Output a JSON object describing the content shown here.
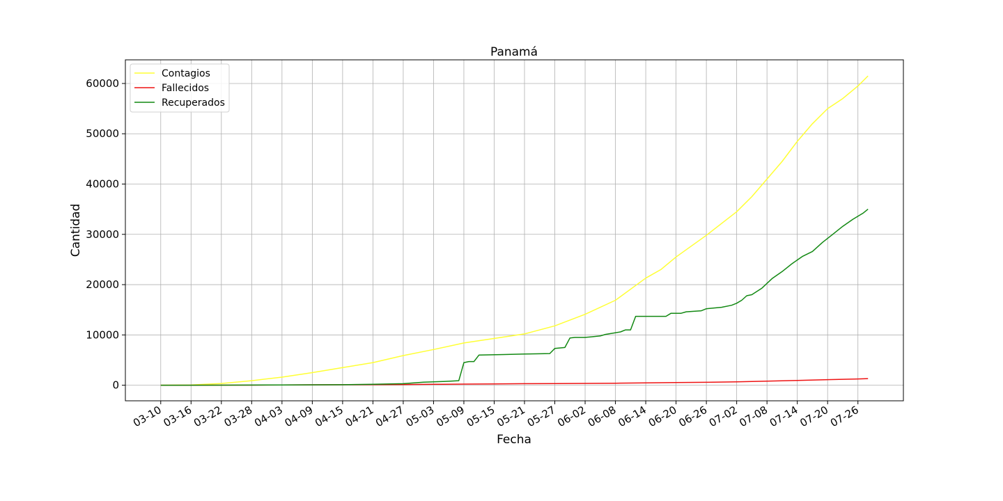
{
  "chart_data": {
    "type": "line",
    "title": "Panamá",
    "xlabel": "Fecha",
    "ylabel": "Cantidad",
    "grid": true,
    "legend_position": "top-left",
    "x_tick_labels": [
      "03-10",
      "03-16",
      "03-22",
      "03-28",
      "04-03",
      "04-09",
      "04-15",
      "04-21",
      "04-27",
      "05-03",
      "05-09",
      "05-15",
      "05-21",
      "05-27",
      "06-02",
      "06-08",
      "06-14",
      "06-20",
      "06-26",
      "07-02",
      "07-08",
      "07-14",
      "07-20",
      "07-26"
    ],
    "y_ticks": [
      0,
      10000,
      20000,
      30000,
      40000,
      50000,
      60000
    ],
    "ylim": [
      -3100,
      64700
    ],
    "xlim": [
      "03-03",
      "08-04"
    ],
    "series": [
      {
        "name": "Contagios",
        "color": "#ffff33",
        "x": [
          "03-10",
          "03-16",
          "03-22",
          "03-28",
          "04-03",
          "04-09",
          "04-15",
          "04-21",
          "04-27",
          "05-03",
          "05-09",
          "05-15",
          "05-21",
          "05-27",
          "06-02",
          "06-08",
          "06-14",
          "06-17",
          "06-20",
          "06-26",
          "07-02",
          "07-05",
          "07-08",
          "07-11",
          "07-14",
          "07-17",
          "07-20",
          "07-23",
          "07-26",
          "07-28"
        ],
        "y": [
          0,
          50,
          350,
          900,
          1600,
          2500,
          3500,
          4500,
          5900,
          7100,
          8400,
          9300,
          10200,
          11800,
          14100,
          16900,
          21300,
          23000,
          25500,
          29800,
          34500,
          37500,
          41000,
          44500,
          48500,
          52000,
          55000,
          57000,
          59500,
          61500
        ]
      },
      {
        "name": "Fallecidos",
        "color": "#ee1111",
        "x": [
          "03-10",
          "03-16",
          "03-22",
          "03-28",
          "04-03",
          "04-09",
          "04-15",
          "04-21",
          "04-27",
          "05-03",
          "05-09",
          "05-15",
          "05-21",
          "05-27",
          "06-02",
          "06-08",
          "06-14",
          "06-20",
          "06-26",
          "07-02",
          "07-08",
          "07-14",
          "07-20",
          "07-26",
          "07-28"
        ],
        "y": [
          0,
          5,
          10,
          20,
          40,
          80,
          100,
          120,
          140,
          180,
          220,
          260,
          300,
          330,
          360,
          400,
          450,
          520,
          580,
          680,
          820,
          950,
          1100,
          1250,
          1320
        ]
      },
      {
        "name": "Recuperados",
        "color": "#118811",
        "x": [
          "03-10",
          "03-22",
          "04-03",
          "04-15",
          "04-21",
          "04-27",
          "05-01",
          "05-05",
          "05-08",
          "05-09",
          "05-10",
          "05-11",
          "05-12",
          "05-17",
          "05-21",
          "05-26",
          "05-27",
          "05-29",
          "05-30",
          "05-31",
          "06-02",
          "06-03",
          "06-05",
          "06-06",
          "06-09",
          "06-10",
          "06-11",
          "06-12",
          "06-14",
          "06-17",
          "06-18",
          "06-19",
          "06-20",
          "06-21",
          "06-22",
          "06-25",
          "06-26",
          "06-29",
          "07-01",
          "07-02",
          "07-03",
          "07-04",
          "07-05",
          "07-07",
          "07-09",
          "07-11",
          "07-13",
          "07-15",
          "07-17",
          "07-19",
          "07-21",
          "07-23",
          "07-25",
          "07-27",
          "07-28"
        ],
        "y": [
          0,
          10,
          50,
          100,
          180,
          300,
          600,
          750,
          900,
          4500,
          4700,
          4700,
          6000,
          6100,
          6200,
          6300,
          7300,
          7500,
          9400,
          9500,
          9500,
          9600,
          9800,
          10100,
          10600,
          11000,
          11000,
          13700,
          13700,
          13700,
          13700,
          14300,
          14300,
          14300,
          14600,
          14800,
          15200,
          15500,
          15900,
          16300,
          16900,
          17800,
          18000,
          19300,
          21200,
          22600,
          24200,
          25600,
          26600,
          28400,
          30000,
          31600,
          33000,
          34200,
          35000
        ]
      }
    ]
  }
}
